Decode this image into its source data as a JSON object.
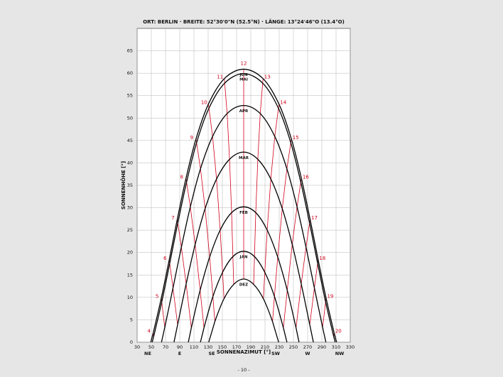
{
  "chart_data": {
    "type": "sunpath",
    "title": "ORT: BERLIN · BREITE: 52°30'0\"N (52.5°N) · LÄNGE: 13°24'46\"O (13.4°O)",
    "xlabel": "SONNENAZIMUT [°]",
    "ylabel": "SONNENHÖHE [°]",
    "xlim": [
      30,
      330
    ],
    "xticks": [
      30,
      50,
      70,
      90,
      110,
      130,
      150,
      170,
      190,
      210,
      230,
      250,
      270,
      290,
      310,
      330
    ],
    "ylim": [
      0,
      70
    ],
    "yticks": [
      0,
      5,
      10,
      15,
      20,
      25,
      30,
      35,
      40,
      45,
      50,
      55,
      60,
      65
    ],
    "compass": [
      {
        "value": 45,
        "label": "NE"
      },
      {
        "value": 90,
        "label": "E"
      },
      {
        "value": 135,
        "label": "SE"
      },
      {
        "value": 225,
        "label": "SW"
      },
      {
        "value": 270,
        "label": "W"
      },
      {
        "value": 315,
        "label": "NW"
      }
    ],
    "grid": true,
    "curve_color": "#000000",
    "hour_color": "#d0021b",
    "hours": [
      4,
      5,
      6,
      7,
      8,
      9,
      10,
      11,
      12,
      13,
      14,
      15,
      16,
      17,
      18,
      19,
      20
    ],
    "series": [
      {
        "name": "JUN",
        "rise": 49.2,
        "set": 310.8,
        "x": [
          52.7,
          64.1,
          75.2,
          86.5,
          98.7,
          112.8,
          130.3,
          152.8,
          180,
          207.2,
          229.7,
          247.2,
          261.3,
          273.5,
          284.8,
          295.9,
          307.3
        ],
        "values": [
          2.1,
          9.9,
          18.4,
          27.4,
          36.5,
          45.3,
          53.1,
          58.8,
          60.9,
          58.8,
          53.1,
          45.3,
          36.5,
          27.4,
          18.4,
          9.9,
          2.1
        ]
      },
      {
        "name": "MAI",
        "rise": 51.2,
        "set": 308.8,
        "x": [
          53.2,
          64.7,
          75.9,
          87.3,
          99.6,
          113.7,
          131.1,
          153.3,
          180,
          206.7,
          228.9,
          246.3,
          260.4,
          272.7,
          284.1,
          295.3,
          306.8
        ],
        "values": [
          1.2,
          9.0,
          17.6,
          26.6,
          35.7,
          44.5,
          52.2,
          57.8,
          59.9,
          57.8,
          52.2,
          44.5,
          35.7,
          26.6,
          17.6,
          9.0,
          1.2
        ]
      },
      {
        "name": "APR",
        "rise": 64.3,
        "set": 295.7,
        "x": [
          null,
          68.9,
          80.5,
          92.3,
          104.9,
          119.2,
          136.2,
          156.7,
          180,
          203.3,
          223.8,
          240.8,
          255.1,
          267.7,
          279.5,
          291.1,
          null
        ],
        "values": [
          null,
          3.3,
          12.1,
          21.2,
          30.2,
          38.7,
          45.9,
          51.0,
          52.8,
          51.0,
          45.9,
          38.7,
          30.2,
          21.2,
          12.1,
          3.3,
          null
        ]
      },
      {
        "name": "MAR",
        "rise": 81.9,
        "set": 278.1,
        "x": [
          null,
          null,
          87.0,
          99.0,
          111.7,
          125.7,
          141.8,
          160.1,
          180,
          199.9,
          218.2,
          234.3,
          248.3,
          261.0,
          273.0,
          null,
          null
        ],
        "values": [
          null,
          null,
          3.9,
          13.0,
          21.8,
          29.8,
          36.4,
          40.8,
          42.4,
          40.8,
          36.4,
          29.8,
          21.8,
          13.0,
          3.9,
          null,
          null
        ]
      },
      {
        "name": "FEB",
        "rise": 102.1,
        "set": 257.9,
        "x": [
          null,
          null,
          null,
          106.3,
          118.7,
          132.1,
          146.9,
          163.0,
          180,
          197.0,
          213.1,
          227.9,
          241.3,
          253.7,
          null,
          null,
          null
        ],
        "values": [
          null,
          null,
          null,
          3.2,
          11.6,
          19.0,
          25.0,
          28.9,
          30.2,
          28.9,
          25.0,
          19.0,
          11.6,
          3.2,
          null,
          null,
          null
        ]
      },
      {
        "name": "JAN",
        "rise": 119.1,
        "set": 240.9,
        "x": [
          null,
          null,
          null,
          null,
          124.1,
          136.7,
          150.3,
          164.8,
          180,
          195.2,
          209.7,
          223.3,
          235.9,
          null,
          null,
          null,
          null
        ],
        "values": [
          null,
          null,
          null,
          null,
          3.2,
          10.2,
          15.6,
          19.1,
          20.3,
          19.1,
          15.6,
          10.2,
          3.2,
          null,
          null,
          null,
          null
        ]
      },
      {
        "name": "DEZ",
        "rise": 130.8,
        "set": 229.2,
        "x": [
          null,
          null,
          null,
          null,
          null,
          139.4,
          152.3,
          166.0,
          180,
          194.0,
          207.7,
          220.6,
          null,
          null,
          null,
          null,
          null
        ],
        "values": [
          null,
          null,
          null,
          null,
          null,
          4.6,
          9.7,
          12.9,
          14.1,
          12.9,
          9.7,
          4.6,
          null,
          null,
          null,
          null,
          null
        ]
      }
    ]
  },
  "footer": {
    "page": "- 10 -"
  }
}
